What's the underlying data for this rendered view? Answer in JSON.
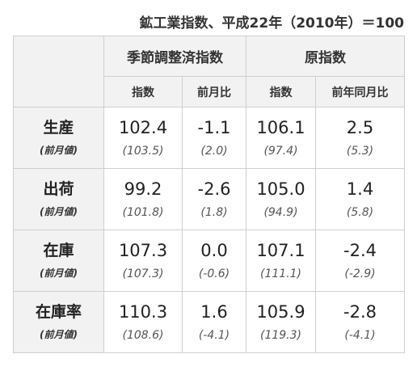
{
  "caption": "鉱工業指数、平成22年（2010年）＝100",
  "table": {
    "group_headers": [
      "季節調整済指数",
      "原指数"
    ],
    "sub_headers": [
      "指数",
      "前月比",
      "指数",
      "前年同月比"
    ],
    "prev_label": "(前月値)",
    "rows": [
      {
        "name": "生産",
        "values": [
          "102.4",
          "-1.1",
          "106.1",
          "2.5"
        ],
        "prev": [
          "(103.5)",
          "(2.0)",
          "(97.4)",
          "(5.3)"
        ]
      },
      {
        "name": "出荷",
        "values": [
          "99.2",
          "-2.6",
          "105.0",
          "1.4"
        ],
        "prev": [
          "(101.8)",
          "(1.8)",
          "(94.9)",
          "(5.8)"
        ]
      },
      {
        "name": "在庫",
        "values": [
          "107.3",
          "0.0",
          "107.1",
          "-2.4"
        ],
        "prev": [
          "(107.3)",
          "(-0.6)",
          "(111.1)",
          "(-2.9)"
        ]
      },
      {
        "name": "在庫率",
        "values": [
          "110.3",
          "1.6",
          "105.9",
          "-2.8"
        ],
        "prev": [
          "(108.6)",
          "(-4.1)",
          "(119.3)",
          "(-4.1)"
        ]
      }
    ]
  }
}
